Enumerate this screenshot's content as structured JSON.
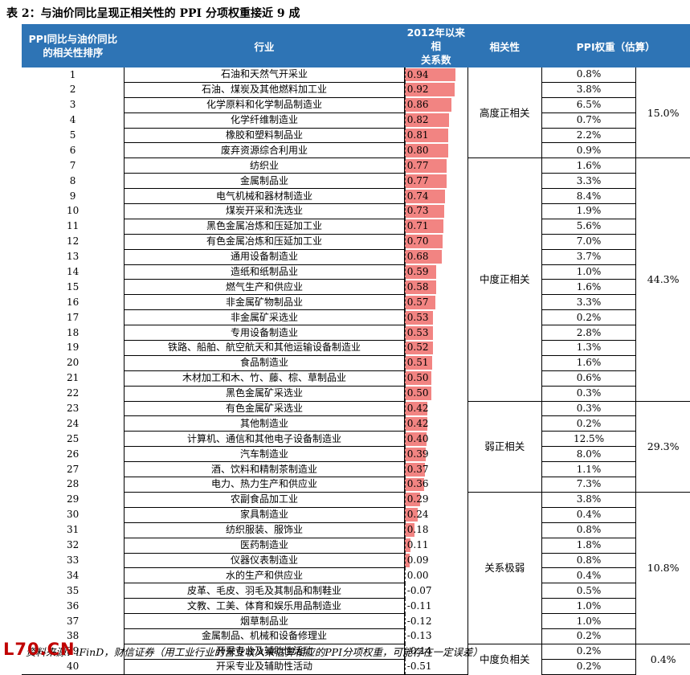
{
  "title": "表 2：与油价同比呈现正相关性的 PPI 分项权重接近 9 成",
  "headers": {
    "rank_line1": "PPI同比与油价同比",
    "rank_line2": "的相关性排序",
    "industry": "行业",
    "corr_line1": "2012年以来相",
    "corr_line2": "关系数",
    "group": "相关性",
    "weight": "PPI权重（估算）"
  },
  "colors": {
    "header_bg": "#2e74b5",
    "pos_bar": "#f28482",
    "neg_bar": "#1f71c4"
  },
  "rows": [
    {
      "rank": "1",
      "industry": "石油和天然气开采业",
      "corr": "0.94",
      "weight": "0.8%"
    },
    {
      "rank": "2",
      "industry": "石油、煤炭及其他燃料加工业",
      "corr": "0.92",
      "weight": "3.8%"
    },
    {
      "rank": "3",
      "industry": "化学原料和化学制品制造业",
      "corr": "0.86",
      "weight": "6.5%"
    },
    {
      "rank": "4",
      "industry": "化学纤维制造业",
      "corr": "0.82",
      "weight": "0.7%"
    },
    {
      "rank": "5",
      "industry": "橡胶和塑料制品业",
      "corr": "0.81",
      "weight": "2.2%"
    },
    {
      "rank": "6",
      "industry": "废弃资源综合利用业",
      "corr": "0.80",
      "weight": "0.9%"
    },
    {
      "rank": "7",
      "industry": "纺织业",
      "corr": "0.77",
      "weight": "1.6%"
    },
    {
      "rank": "8",
      "industry": "金属制品业",
      "corr": "0.77",
      "weight": "3.3%"
    },
    {
      "rank": "9",
      "industry": "电气机械和器材制造业",
      "corr": "0.74",
      "weight": "8.4%"
    },
    {
      "rank": "10",
      "industry": "煤炭开采和洗选业",
      "corr": "0.73",
      "weight": "1.9%"
    },
    {
      "rank": "11",
      "industry": "黑色金属冶炼和压延加工业",
      "corr": "0.71",
      "weight": "5.6%"
    },
    {
      "rank": "12",
      "industry": "有色金属冶炼和压延加工业",
      "corr": "0.70",
      "weight": "7.0%"
    },
    {
      "rank": "13",
      "industry": "通用设备制造业",
      "corr": "0.68",
      "weight": "3.7%"
    },
    {
      "rank": "14",
      "industry": "造纸和纸制品业",
      "corr": "0.59",
      "weight": "1.0%"
    },
    {
      "rank": "15",
      "industry": "燃气生产和供应业",
      "corr": "0.58",
      "weight": "1.6%"
    },
    {
      "rank": "16",
      "industry": "非金属矿物制品业",
      "corr": "0.57",
      "weight": "3.3%"
    },
    {
      "rank": "17",
      "industry": "非金属矿采选业",
      "corr": "0.53",
      "weight": "0.2%"
    },
    {
      "rank": "18",
      "industry": "专用设备制造业",
      "corr": "0.53",
      "weight": "2.8%"
    },
    {
      "rank": "19",
      "industry": "铁路、船舶、航空航天和其他运输设备制造业",
      "corr": "0.52",
      "weight": "1.3%"
    },
    {
      "rank": "20",
      "industry": "食品制造业",
      "corr": "0.51",
      "weight": "1.6%"
    },
    {
      "rank": "21",
      "industry": "木材加工和木、竹、藤、棕、草制品业",
      "corr": "0.50",
      "weight": "0.6%"
    },
    {
      "rank": "22",
      "industry": "黑色金属矿采选业",
      "corr": "0.50",
      "weight": "0.3%"
    },
    {
      "rank": "23",
      "industry": "有色金属矿采选业",
      "corr": "0.42",
      "weight": "0.3%"
    },
    {
      "rank": "24",
      "industry": "其他制造业",
      "corr": "0.42",
      "weight": "0.2%"
    },
    {
      "rank": "25",
      "industry": "计算机、通信和其他电子设备制造业",
      "corr": "0.40",
      "weight": "12.5%"
    },
    {
      "rank": "26",
      "industry": "汽车制造业",
      "corr": "0.39",
      "weight": "8.0%"
    },
    {
      "rank": "27",
      "industry": "酒、饮料和精制茶制造业",
      "corr": "0.37",
      "weight": "1.1%"
    },
    {
      "rank": "28",
      "industry": "电力、热力生产和供应业",
      "corr": "0.36",
      "weight": "7.3%"
    },
    {
      "rank": "29",
      "industry": "农副食品加工业",
      "corr": "0.29",
      "weight": "3.8%"
    },
    {
      "rank": "30",
      "industry": "家具制造业",
      "corr": "0.24",
      "weight": "0.4%"
    },
    {
      "rank": "31",
      "industry": "纺织服装、服饰业",
      "corr": "0.18",
      "weight": "0.8%"
    },
    {
      "rank": "32",
      "industry": "医药制造业",
      "corr": "0.11",
      "weight": "1.8%"
    },
    {
      "rank": "33",
      "industry": "仪器仪表制造业",
      "corr": "0.09",
      "weight": "0.8%"
    },
    {
      "rank": "34",
      "industry": "水的生产和供应业",
      "corr": "0.00",
      "weight": "0.4%"
    },
    {
      "rank": "35",
      "industry": "皮革、毛皮、羽毛及其制品和制鞋业",
      "corr": "-0.07",
      "weight": "0.5%"
    },
    {
      "rank": "36",
      "industry": "文教、工美、体育和娱乐用品制造业",
      "corr": "-0.11",
      "weight": "1.0%"
    },
    {
      "rank": "37",
      "industry": "烟草制品业",
      "corr": "-0.12",
      "weight": "1.0%"
    },
    {
      "rank": "38",
      "industry": "金属制品、机械和设备修理业",
      "corr": "-0.13",
      "weight": "0.2%"
    },
    {
      "rank": "39",
      "industry": "开采专业及辅助性活动",
      "corr": "-0.14",
      "weight": "0.2%"
    },
    {
      "rank": "40",
      "industry": "开采专业及辅助性活动",
      "corr": "-0.51",
      "weight": "0.2%"
    }
  ],
  "groups": [
    {
      "label": "高度正相关",
      "total": "15.0%",
      "count": 6
    },
    {
      "label": "中度正相关",
      "total": "44.3%",
      "count": 16
    },
    {
      "label": "弱正相关",
      "total": "29.3%",
      "count": 6
    },
    {
      "label": "关系极弱",
      "total": "10.8%",
      "count": 10
    },
    {
      "label": "中度负相关",
      "total": "0.4%",
      "count": 2
    }
  ],
  "source": "资料来源：iFinD，财信证券（用工业行业的营业收入来估算相应的PPI分项权重，可能存在一定误差）",
  "watermark": "L70.CN"
}
